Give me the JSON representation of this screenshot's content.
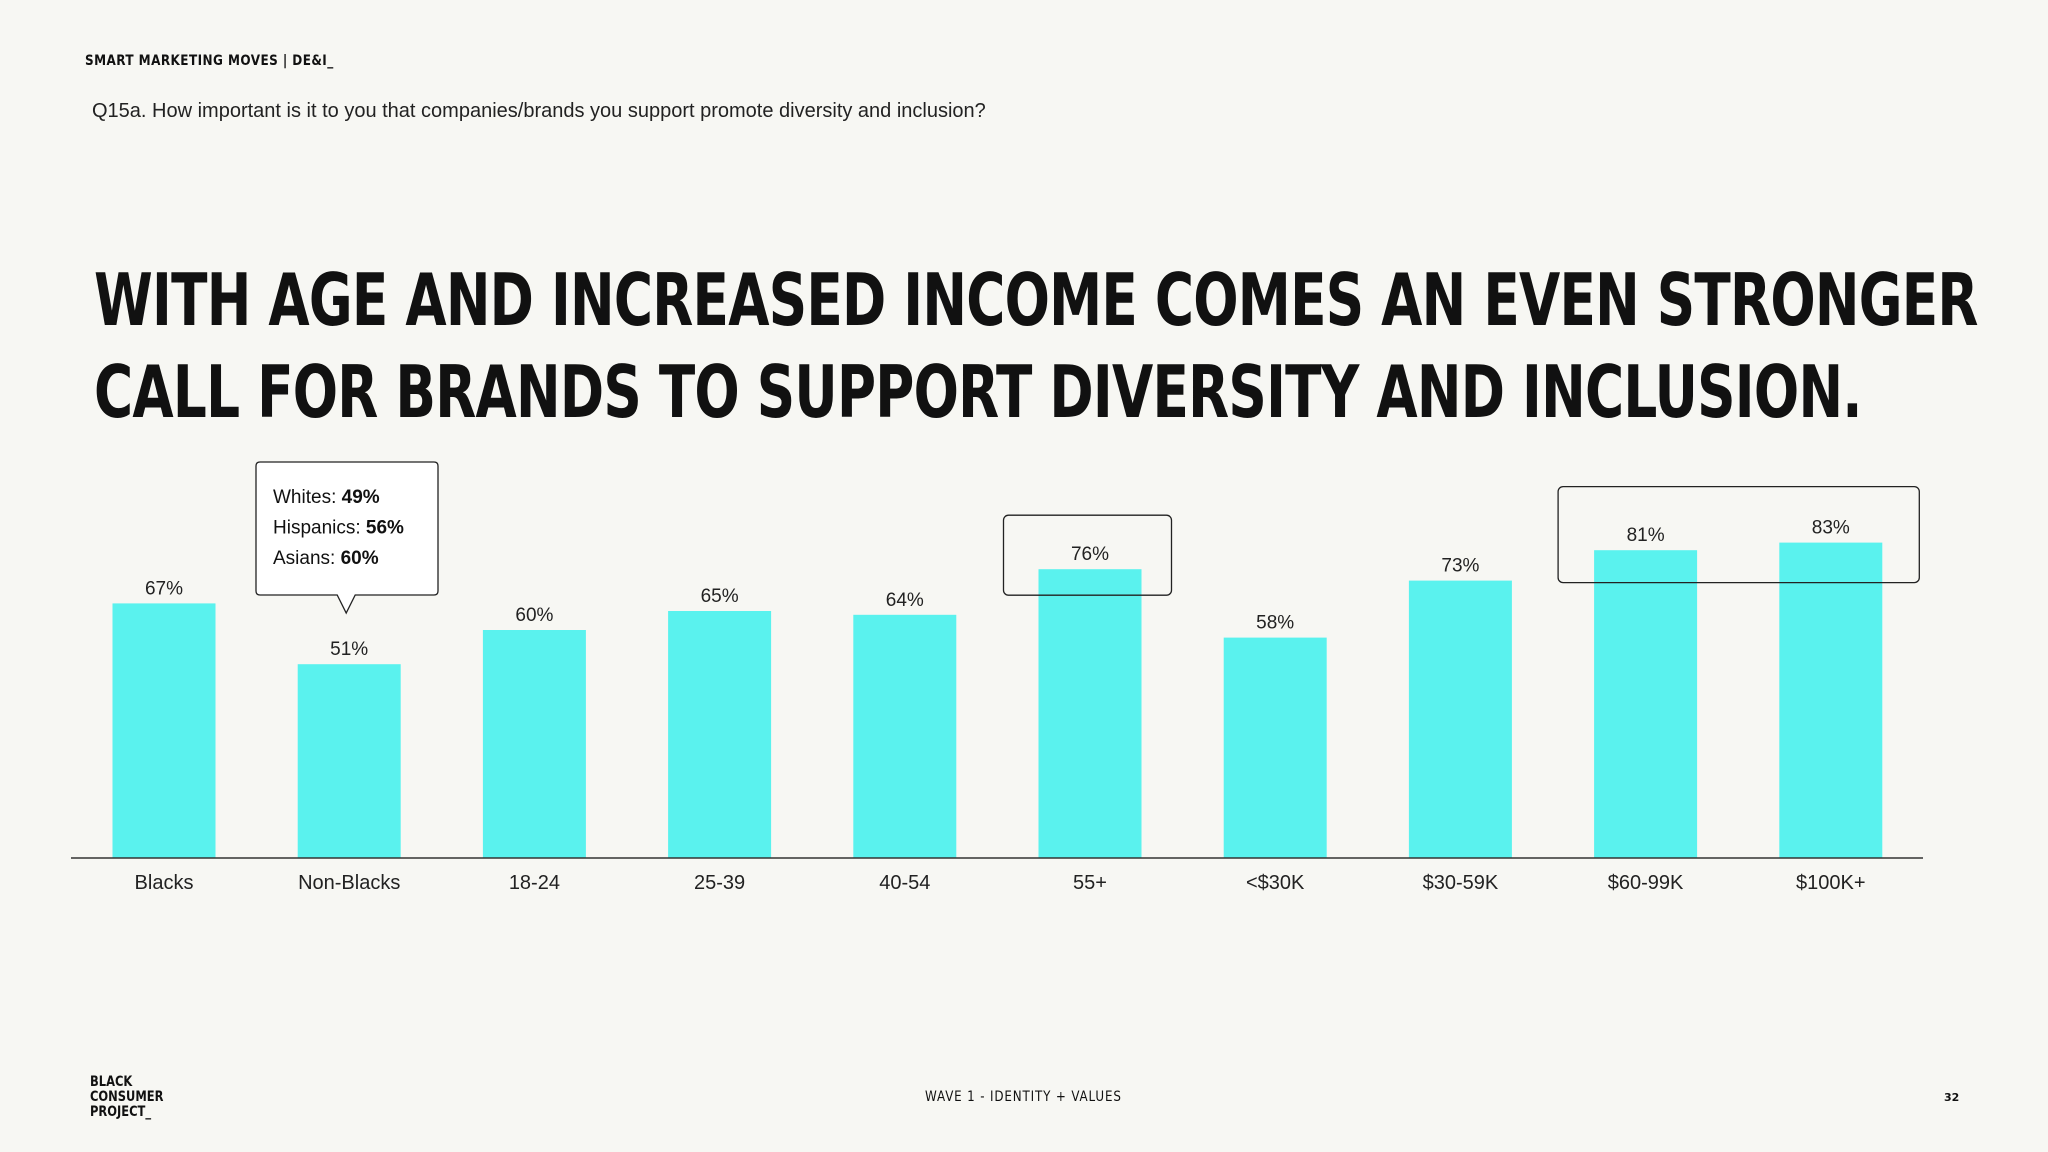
{
  "header": {
    "kicker": "SMART MARKETING MOVES | DE&I_",
    "question": "Q15a. How important is it to you that companies/brands you support promote diversity and inclusion?"
  },
  "headline": {
    "line1": "WITH AGE AND INCREASED INCOME COMES AN EVEN STRONGER",
    "line2": "CALL FOR BRANDS TO SUPPORT DIVERSITY AND INCLUSION."
  },
  "colors": {
    "bar": "#5af2ee",
    "text": "#111111",
    "background": "#f7f7f3"
  },
  "chart_data": {
    "type": "bar",
    "categories": [
      "Blacks",
      "Non-Blacks",
      "18-24",
      "25-39",
      "40-54",
      "55+",
      "<$30K",
      "$30-59K",
      "$60-99K",
      "$100K+"
    ],
    "values": [
      67,
      51,
      60,
      65,
      64,
      76,
      58,
      73,
      81,
      83
    ],
    "value_labels": [
      "67%",
      "51%",
      "60%",
      "65%",
      "64%",
      "76%",
      "58%",
      "73%",
      "81%",
      "83%"
    ],
    "ylim": [
      0,
      100
    ],
    "grid": false,
    "highlighted_categories": [
      "55+",
      "$60-99K",
      "$100K+"
    ],
    "callout": {
      "category": "Non-Blacks",
      "lines": [
        {
          "label": "Whites: ",
          "value": "49%"
        },
        {
          "label": "Hispanics: ",
          "value": "56%"
        },
        {
          "label": "Asians: ",
          "value": "60%"
        }
      ]
    }
  },
  "footer": {
    "logo_lines": [
      "BLACK",
      "CONSUMER",
      "PROJECT_"
    ],
    "center": "WAVE 1 - IDENTITY + VALUES",
    "page": "32"
  }
}
